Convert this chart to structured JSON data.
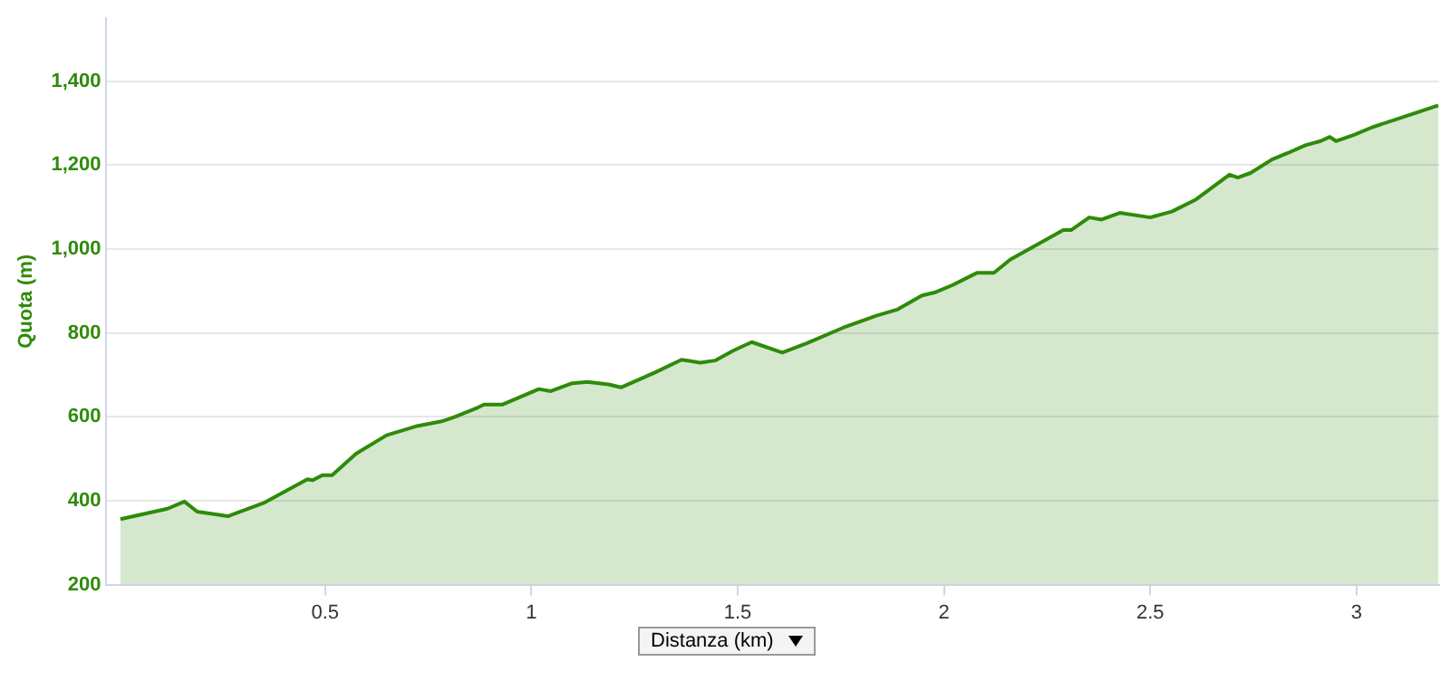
{
  "chart_data": {
    "type": "area",
    "xlabel": "Distanza (km)",
    "ylabel": "Quota (m)",
    "xlim": [
      -0.03,
      3.2
    ],
    "xticks": [
      0.5,
      1,
      1.5,
      2,
      2.5,
      3
    ],
    "ylim": [
      200,
      1550
    ],
    "yticks": [
      {
        "value": 200,
        "label": "200"
      },
      {
        "value": 400,
        "label": "400"
      },
      {
        "value": 600,
        "label": "600"
      },
      {
        "value": 800,
        "label": "800"
      },
      {
        "value": 1000,
        "label": "1,000"
      },
      {
        "value": 1200,
        "label": "1,200"
      },
      {
        "value": 1400,
        "label": "1,400"
      }
    ],
    "grid": "y",
    "series": [
      {
        "color": "#2e8b0a",
        "x": [
          0.004,
          0.118,
          0.159,
          0.19,
          0.265,
          0.354,
          0.457,
          0.47,
          0.494,
          0.517,
          0.575,
          0.649,
          0.723,
          0.782,
          0.81,
          0.87,
          0.885,
          0.929,
          1.018,
          1.047,
          1.099,
          1.136,
          1.187,
          1.217,
          1.298,
          1.364,
          1.409,
          1.445,
          1.49,
          1.534,
          1.608,
          1.667,
          1.755,
          1.836,
          1.888,
          1.947,
          1.977,
          2.021,
          2.072,
          2.08,
          2.121,
          2.161,
          2.242,
          2.289,
          2.308,
          2.352,
          2.382,
          2.426,
          2.5,
          2.552,
          2.611,
          2.692,
          2.712,
          2.743,
          2.795,
          2.832,
          2.876,
          2.913,
          2.935,
          2.95,
          2.994,
          3.038,
          3.127,
          3.198
        ],
        "values": [
          356,
          381,
          398,
          374,
          363,
          396,
          451,
          449,
          461,
          461,
          512,
          556,
          578,
          589,
          598,
          622,
          629,
          629,
          666,
          661,
          680,
          683,
          677,
          670,
          705,
          736,
          729,
          734,
          758,
          778,
          753,
          775,
          812,
          841,
          856,
          889,
          896,
          914,
          939,
          943,
          943,
          975,
          1019,
          1045,
          1045,
          1075,
          1070,
          1086,
          1075,
          1089,
          1118,
          1177,
          1170,
          1181,
          1213,
          1228,
          1247,
          1257,
          1267,
          1257,
          1272,
          1290,
          1319,
          1342
        ]
      }
    ]
  }
}
